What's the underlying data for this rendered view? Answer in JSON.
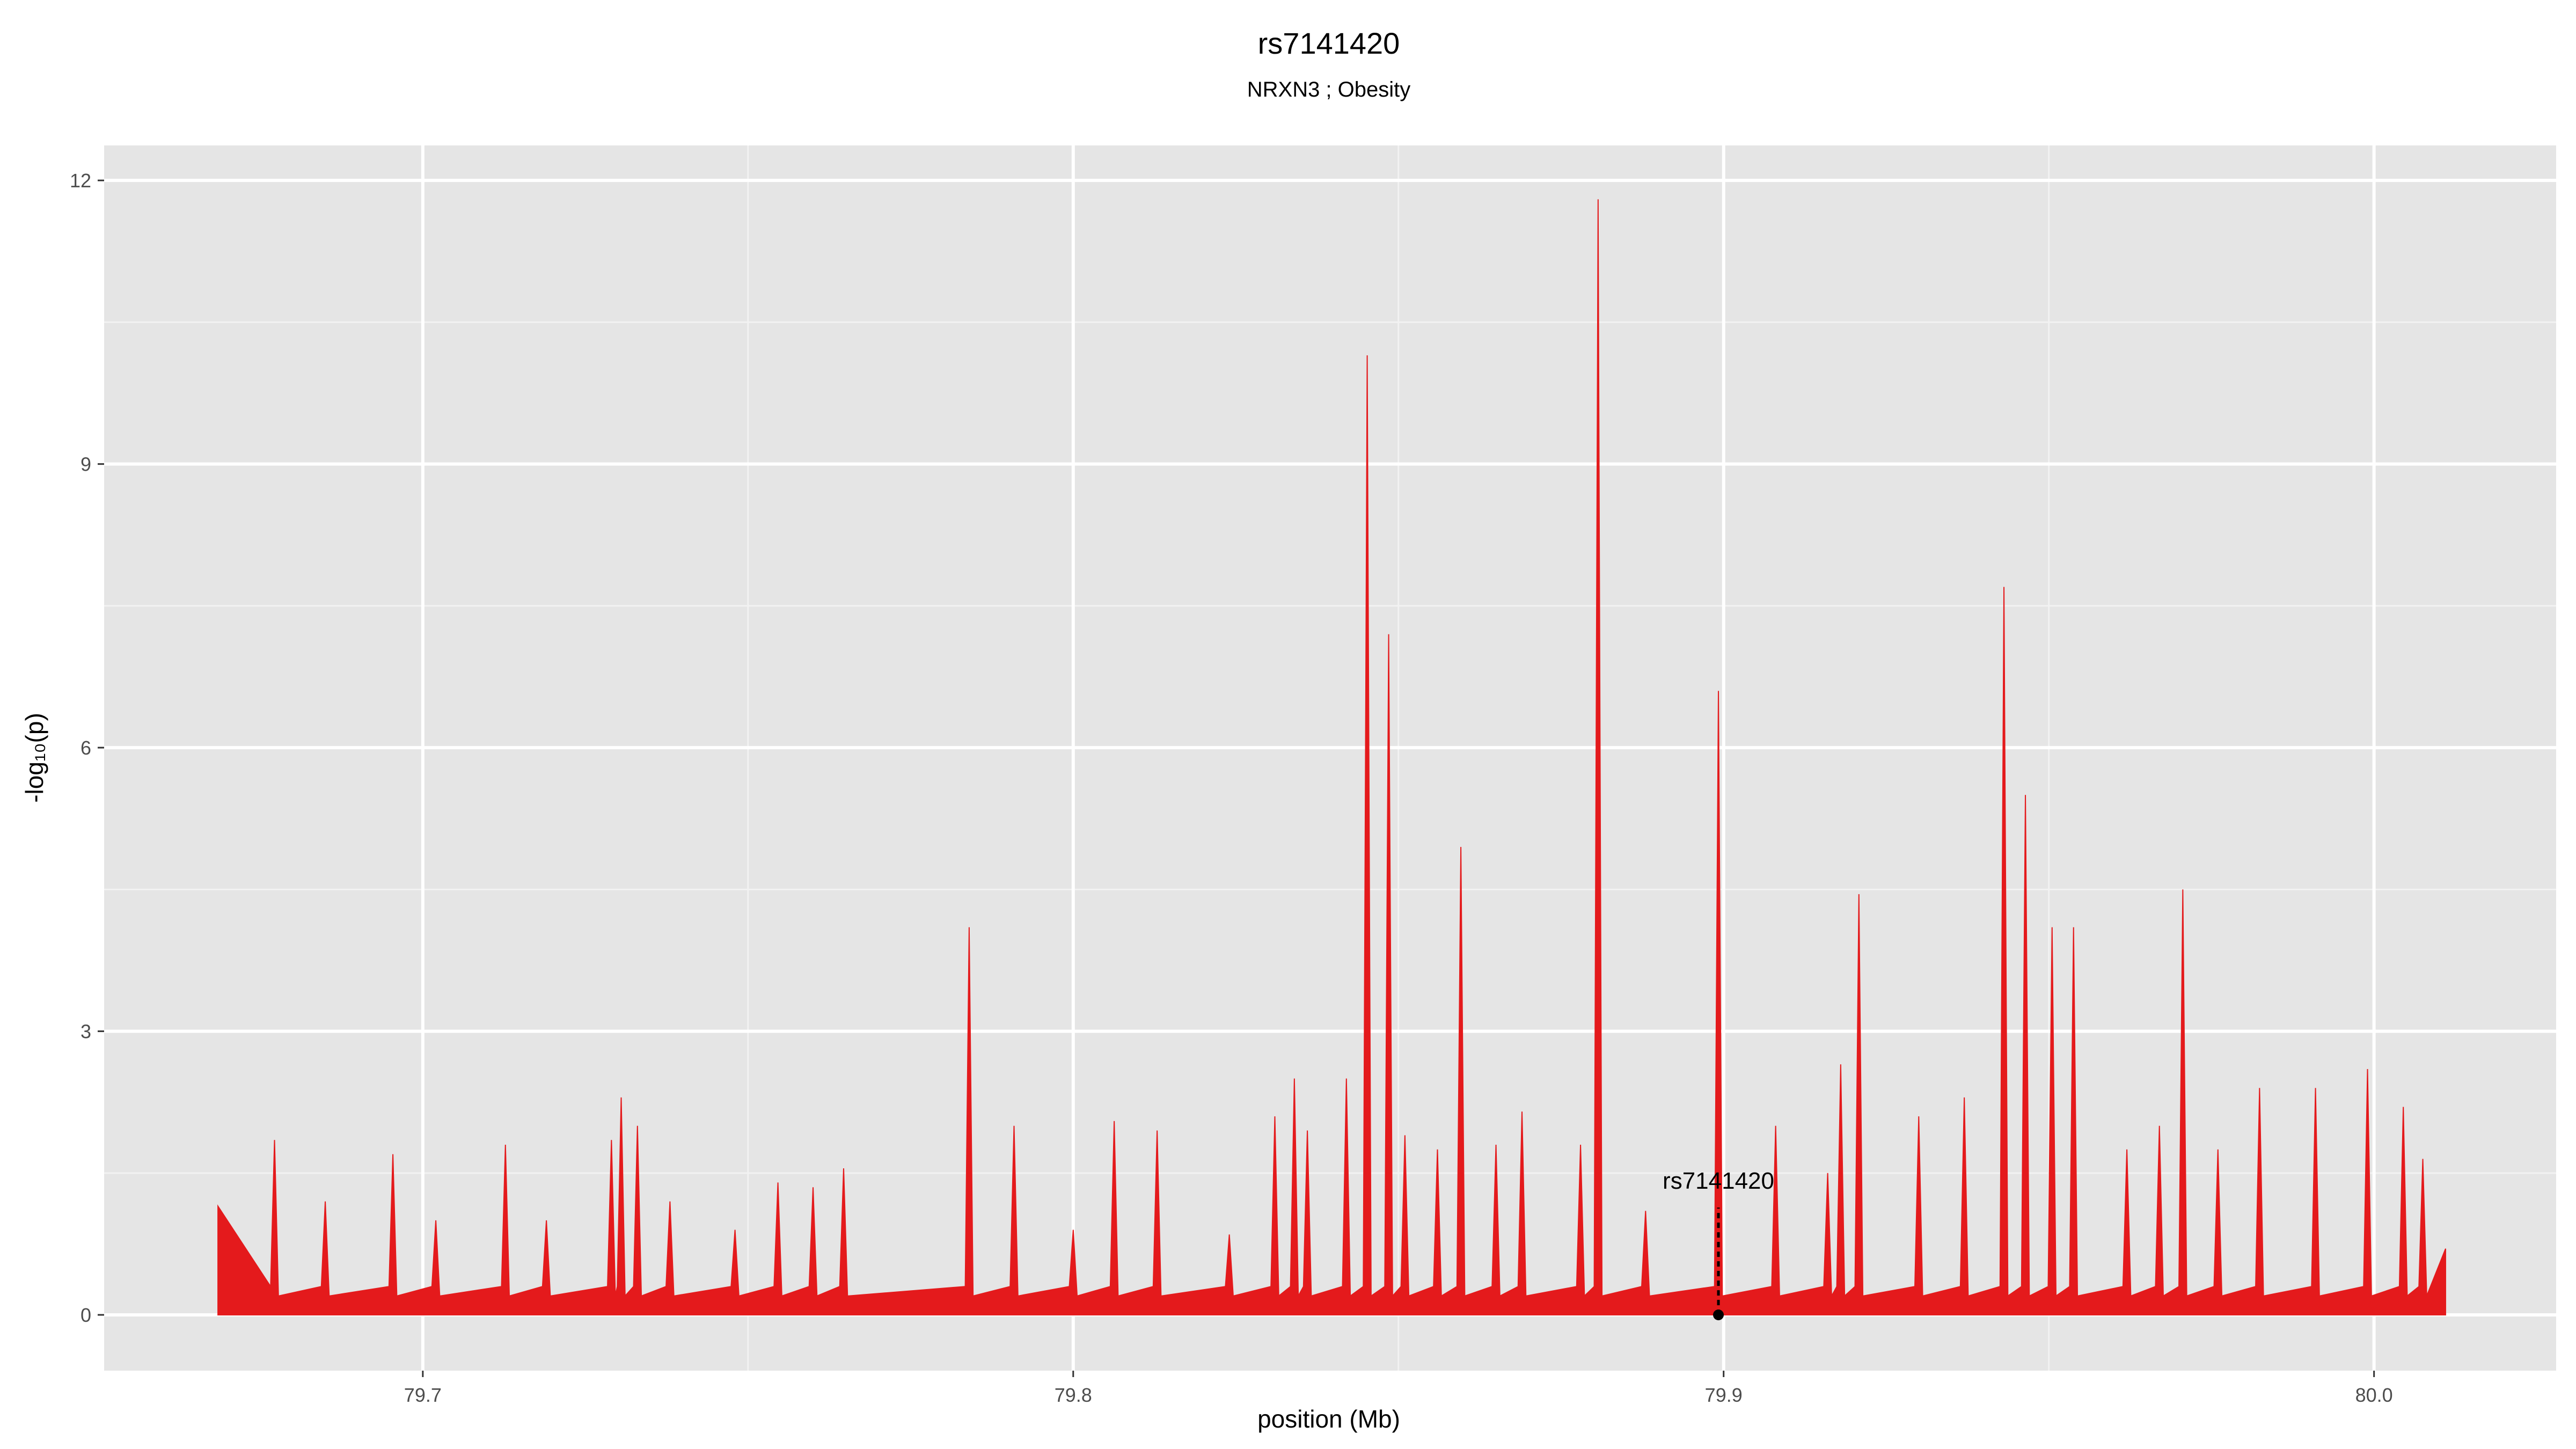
{
  "chart_data": {
    "type": "area",
    "title": "rs7141420",
    "subtitle": "NRXN3 ; Obesity",
    "x_label": "position (Mb)",
    "y_label": "-log₁₀(p)",
    "xlim": [
      79.651,
      80.028
    ],
    "ylim": [
      -0.59,
      12.37
    ],
    "xticks": [
      79.7,
      79.8,
      79.9,
      {
        "value": 80,
        "label": "80.0"
      }
    ],
    "yticks": [
      0,
      3,
      6,
      9,
      12
    ],
    "grid": true,
    "x": [
      79.6685,
      79.6766,
      79.6772,
      79.6778,
      79.6844,
      79.685,
      79.6856,
      79.6948,
      79.6954,
      79.696,
      79.7014,
      79.702,
      79.7026,
      79.7121,
      79.7127,
      79.7133,
      79.7184,
      79.719,
      79.7196,
      79.7284,
      79.729,
      79.7296,
      79.7299,
      79.7305,
      79.7311,
      79.7324,
      79.733,
      79.7336,
      79.7374,
      79.738,
      79.7386,
      79.7474,
      79.748,
      79.7486,
      79.754,
      79.7546,
      79.7552,
      79.7594,
      79.76,
      79.7606,
      79.7641,
      79.7647,
      79.7653,
      79.7834,
      79.784,
      79.7846,
      79.7903,
      79.7909,
      79.7915,
      79.7994,
      79.8,
      79.8006,
      79.8057,
      79.8063,
      79.8069,
      79.8123,
      79.8129,
      79.8135,
      79.8234,
      79.824,
      79.8246,
      79.8304,
      79.831,
      79.8316,
      79.8334,
      79.834,
      79.8346,
      79.8354,
      79.836,
      79.8366,
      79.8414,
      79.842,
      79.8426,
      79.8446,
      79.8452,
      79.8458,
      79.8479,
      79.8485,
      79.8491,
      79.8504,
      79.851,
      79.8516,
      79.8554,
      79.856,
      79.8566,
      79.859,
      79.8596,
      79.8602,
      79.8644,
      79.865,
      79.8656,
      79.8684,
      79.869,
      79.8696,
      79.8774,
      79.878,
      79.8786,
      79.8801,
      79.8807,
      79.8813,
      79.8874,
      79.888,
      79.8886,
      79.8986,
      79.8992,
      79.8998,
      79.9074,
      79.908,
      79.9086,
      79.9154,
      79.916,
      79.9166,
      79.9174,
      79.918,
      79.9186,
      79.9202,
      79.9208,
      79.9214,
      79.9294,
      79.93,
      79.9306,
      79.9364,
      79.937,
      79.9376,
      79.9425,
      79.9431,
      79.9437,
      79.9458,
      79.9464,
      79.947,
      79.9499,
      79.9505,
      79.9511,
      79.9532,
      79.9538,
      79.9544,
      79.9614,
      79.962,
      79.9626,
      79.9664,
      79.967,
      79.9676,
      79.97,
      79.9706,
      79.9712,
      79.9754,
      79.976,
      79.9766,
      79.9818,
      79.9824,
      79.983,
      79.9904,
      79.991,
      79.9916,
      79.9984,
      79.999,
      79.9996,
      80.0039,
      80.0045,
      80.0051,
      80.0069,
      80.0075,
      80.0081,
      80.011
    ],
    "series": [
      {
        "color": "#e41a1c",
        "values": [
          1.15,
          0.3,
          1.85,
          0.2,
          0.3,
          1.2,
          0.2,
          0.3,
          1.7,
          0.2,
          0.3,
          1.0,
          0.2,
          0.3,
          1.8,
          0.2,
          0.3,
          1.0,
          0.2,
          0.3,
          1.85,
          0.2,
          0.3,
          2.3,
          0.2,
          0.3,
          2.0,
          0.2,
          0.3,
          1.2,
          0.2,
          0.3,
          0.9,
          0.2,
          0.3,
          1.4,
          0.2,
          0.3,
          1.35,
          0.2,
          0.3,
          1.55,
          0.2,
          0.3,
          4.1,
          0.2,
          0.3,
          2.0,
          0.2,
          0.3,
          0.9,
          0.2,
          0.3,
          2.05,
          0.2,
          0.3,
          1.95,
          0.2,
          0.3,
          0.85,
          0.2,
          0.3,
          2.1,
          0.2,
          0.3,
          2.5,
          0.2,
          0.3,
          1.95,
          0.2,
          0.3,
          2.5,
          0.2,
          0.3,
          10.15,
          0.2,
          0.3,
          7.2,
          0.2,
          0.3,
          1.9,
          0.2,
          0.3,
          1.75,
          0.2,
          0.3,
          4.95,
          0.2,
          0.3,
          1.8,
          0.2,
          0.3,
          2.15,
          0.2,
          0.3,
          1.8,
          0.2,
          0.3,
          11.8,
          0.2,
          0.3,
          1.1,
          0.2,
          0.3,
          6.6,
          0.2,
          0.3,
          2.0,
          0.2,
          0.3,
          1.5,
          0.2,
          0.3,
          2.65,
          0.2,
          0.3,
          4.45,
          0.2,
          0.3,
          2.1,
          0.2,
          0.3,
          2.3,
          0.2,
          0.3,
          7.7,
          0.2,
          0.3,
          5.5,
          0.2,
          0.3,
          4.1,
          0.2,
          0.3,
          4.1,
          0.2,
          0.3,
          1.75,
          0.2,
          0.3,
          2.0,
          0.2,
          0.3,
          4.5,
          0.2,
          0.3,
          1.75,
          0.2,
          0.3,
          2.4,
          0.2,
          0.3,
          2.4,
          0.2,
          0.3,
          2.6,
          0.2,
          0.3,
          2.2,
          0.2,
          0.3,
          1.65,
          0.2,
          0.7
        ]
      }
    ],
    "annotation": {
      "text": "rs7141420",
      "x": 79.8992,
      "y": 0
    }
  }
}
